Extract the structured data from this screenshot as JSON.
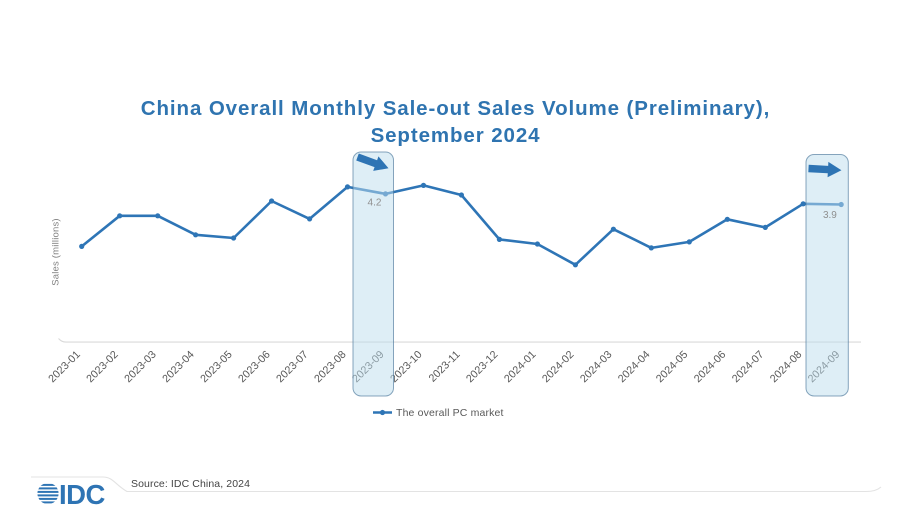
{
  "page": {
    "background": "#ffffff",
    "accent_blue": "#2e74b4",
    "title_color": "#2f74b0",
    "source_note": "Source: IDC China, 2024",
    "logo_text": "IDC"
  },
  "chart_data": {
    "type": "line",
    "title": "China Overall Monthly Sale-out Sales Volume (Preliminary),\nSeptember 2024",
    "xlabel": "",
    "ylabel": "Sales (millions)",
    "grid": false,
    "y_axis_ticks_visible": false,
    "ylim": [
      0,
      5.4
    ],
    "legend_position": "bottom",
    "categories": [
      "2023-01",
      "2023-02",
      "2023-03",
      "2023-04",
      "2023-05",
      "2023-06",
      "2023-07",
      "2023-08",
      "2023-09",
      "2023-10",
      "2023-11",
      "2023-12",
      "2024-01",
      "2024-02",
      "2024-03",
      "2024-04",
      "2024-05",
      "2024-06",
      "2024-07",
      "2024-08",
      "2024-09"
    ],
    "series": [
      {
        "name": "The overall PC market",
        "color": "#2e75b6",
        "values": [
          2.71,
          3.58,
          3.58,
          3.04,
          2.95,
          4.0,
          3.49,
          4.4,
          4.2,
          4.44,
          4.17,
          2.91,
          2.78,
          2.19,
          3.2,
          2.67,
          2.84,
          3.48,
          3.25,
          3.92,
          3.9
        ]
      }
    ],
    "data_labels": [
      {
        "category": "2023-09",
        "text": "4.2"
      },
      {
        "category": "2024-09",
        "text": "3.9"
      }
    ],
    "highlight_bands": [
      {
        "category": "2023-09",
        "arrow": "down-right"
      },
      {
        "category": "2024-09",
        "arrow": "right"
      }
    ]
  },
  "style": {
    "band_fill": "rgba(189,221,237,0.5)",
    "band_border": "rgba(73,118,153,0.65)",
    "axis_line_color": "#d9d9d9",
    "tick_label_color": "#595959",
    "data_label_color": "#8f8f8f",
    "divider_color": "#e3e3e3"
  }
}
